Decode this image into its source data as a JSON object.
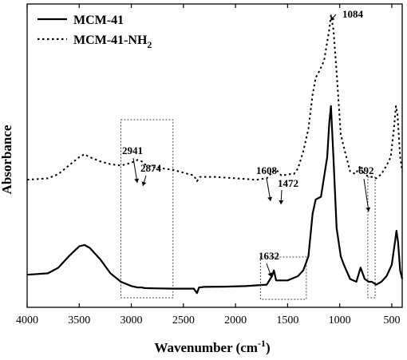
{
  "chart_data": {
    "type": "line",
    "xlabel_main": "Wavenumber (cm",
    "xlabel_sup": "-1",
    "xlabel_close": ")",
    "ylabel": "Absorbance",
    "xlim": [
      4000,
      400
    ],
    "x_reversed": true,
    "yticks_shown": false,
    "x_ticks": [
      4000,
      3500,
      3000,
      2500,
      2000,
      1500,
      1000,
      500
    ],
    "x_tick_labels": [
      "4000",
      "3500",
      "3000",
      "2500",
      "2000",
      "1500",
      "1000",
      "500"
    ],
    "legend_position": "top-left",
    "series": [
      {
        "name": "MCM-41",
        "name_sub": "",
        "style": "solid",
        "points": [
          [
            4000,
            0.085
          ],
          [
            3800,
            0.09
          ],
          [
            3700,
            0.11
          ],
          [
            3600,
            0.15
          ],
          [
            3500,
            0.185
          ],
          [
            3450,
            0.19
          ],
          [
            3400,
            0.18
          ],
          [
            3300,
            0.14
          ],
          [
            3200,
            0.09
          ],
          [
            3100,
            0.06
          ],
          [
            3000,
            0.045
          ],
          [
            2941,
            0.04
          ],
          [
            2900,
            0.04
          ],
          [
            2874,
            0.038
          ],
          [
            2800,
            0.037
          ],
          [
            2600,
            0.036
          ],
          [
            2400,
            0.036
          ],
          [
            2370,
            0.02
          ],
          [
            2350,
            0.04
          ],
          [
            2300,
            0.042
          ],
          [
            2100,
            0.043
          ],
          [
            1900,
            0.045
          ],
          [
            1700,
            0.05
          ],
          [
            1650,
            0.08
          ],
          [
            1632,
            0.1
          ],
          [
            1610,
            0.065
          ],
          [
            1500,
            0.065
          ],
          [
            1400,
            0.08
          ],
          [
            1350,
            0.1
          ],
          [
            1300,
            0.15
          ],
          [
            1260,
            0.3
          ],
          [
            1230,
            0.35
          ],
          [
            1180,
            0.36
          ],
          [
            1120,
            0.5
          ],
          [
            1100,
            0.62
          ],
          [
            1084,
            0.68
          ],
          [
            1060,
            0.5
          ],
          [
            1030,
            0.25
          ],
          [
            990,
            0.15
          ],
          [
            960,
            0.12
          ],
          [
            900,
            0.07
          ],
          [
            840,
            0.06
          ],
          [
            800,
            0.11
          ],
          [
            760,
            0.07
          ],
          [
            720,
            0.06
          ],
          [
            692,
            0.06
          ],
          [
            650,
            0.05
          ],
          [
            600,
            0.06
          ],
          [
            550,
            0.08
          ],
          [
            500,
            0.12
          ],
          [
            470,
            0.2
          ],
          [
            455,
            0.24
          ],
          [
            440,
            0.2
          ],
          [
            420,
            0.1
          ],
          [
            400,
            0.07
          ]
        ]
      },
      {
        "name": "MCM-41-NH",
        "name_sub": "2",
        "style": "dotted",
        "points": [
          [
            4000,
            0.42
          ],
          [
            3800,
            0.425
          ],
          [
            3700,
            0.44
          ],
          [
            3600,
            0.47
          ],
          [
            3500,
            0.5
          ],
          [
            3450,
            0.51
          ],
          [
            3400,
            0.5
          ],
          [
            3300,
            0.485
          ],
          [
            3200,
            0.475
          ],
          [
            3100,
            0.47
          ],
          [
            3000,
            0.48
          ],
          [
            2941,
            0.49
          ],
          [
            2900,
            0.485
          ],
          [
            2874,
            0.475
          ],
          [
            2800,
            0.465
          ],
          [
            2600,
            0.455
          ],
          [
            2500,
            0.445
          ],
          [
            2400,
            0.435
          ],
          [
            2370,
            0.415
          ],
          [
            2340,
            0.43
          ],
          [
            2200,
            0.43
          ],
          [
            2000,
            0.425
          ],
          [
            1800,
            0.42
          ],
          [
            1700,
            0.425
          ],
          [
            1640,
            0.45
          ],
          [
            1608,
            0.455
          ],
          [
            1560,
            0.435
          ],
          [
            1472,
            0.44
          ],
          [
            1440,
            0.44
          ],
          [
            1400,
            0.46
          ],
          [
            1350,
            0.52
          ],
          [
            1300,
            0.6
          ],
          [
            1260,
            0.72
          ],
          [
            1230,
            0.78
          ],
          [
            1200,
            0.8
          ],
          [
            1150,
            0.84
          ],
          [
            1100,
            0.95
          ],
          [
            1084,
            1.0
          ],
          [
            1060,
            0.95
          ],
          [
            1030,
            0.8
          ],
          [
            990,
            0.58
          ],
          [
            950,
            0.52
          ],
          [
            900,
            0.45
          ],
          [
            850,
            0.44
          ],
          [
            800,
            0.47
          ],
          [
            760,
            0.44
          ],
          [
            720,
            0.43
          ],
          [
            692,
            0.43
          ],
          [
            650,
            0.425
          ],
          [
            600,
            0.44
          ],
          [
            550,
            0.47
          ],
          [
            510,
            0.5
          ],
          [
            480,
            0.6
          ],
          [
            460,
            0.68
          ],
          [
            445,
            0.65
          ],
          [
            420,
            0.5
          ],
          [
            400,
            0.45
          ]
        ]
      }
    ],
    "annotations": [
      {
        "text": "1084",
        "x": 1084,
        "y": 1.0
      },
      {
        "text": "2941",
        "x": 2941,
        "y": 0.49
      },
      {
        "text": "2874",
        "x": 2874,
        "y": 0.475
      },
      {
        "text": "1608",
        "x": 1608,
        "y": 0.455
      },
      {
        "text": "1472",
        "x": 1472,
        "y": 0.44
      },
      {
        "text": "692",
        "x": 692,
        "y": 0.43
      },
      {
        "text": "1632",
        "x": 1632,
        "y": 0.1
      }
    ],
    "highlight_boxes": [
      {
        "x_from": 3100,
        "x_to": 2600
      },
      {
        "x_from": 1760,
        "x_to": 1320
      },
      {
        "x_from": 730,
        "x_to": 660
      }
    ]
  }
}
